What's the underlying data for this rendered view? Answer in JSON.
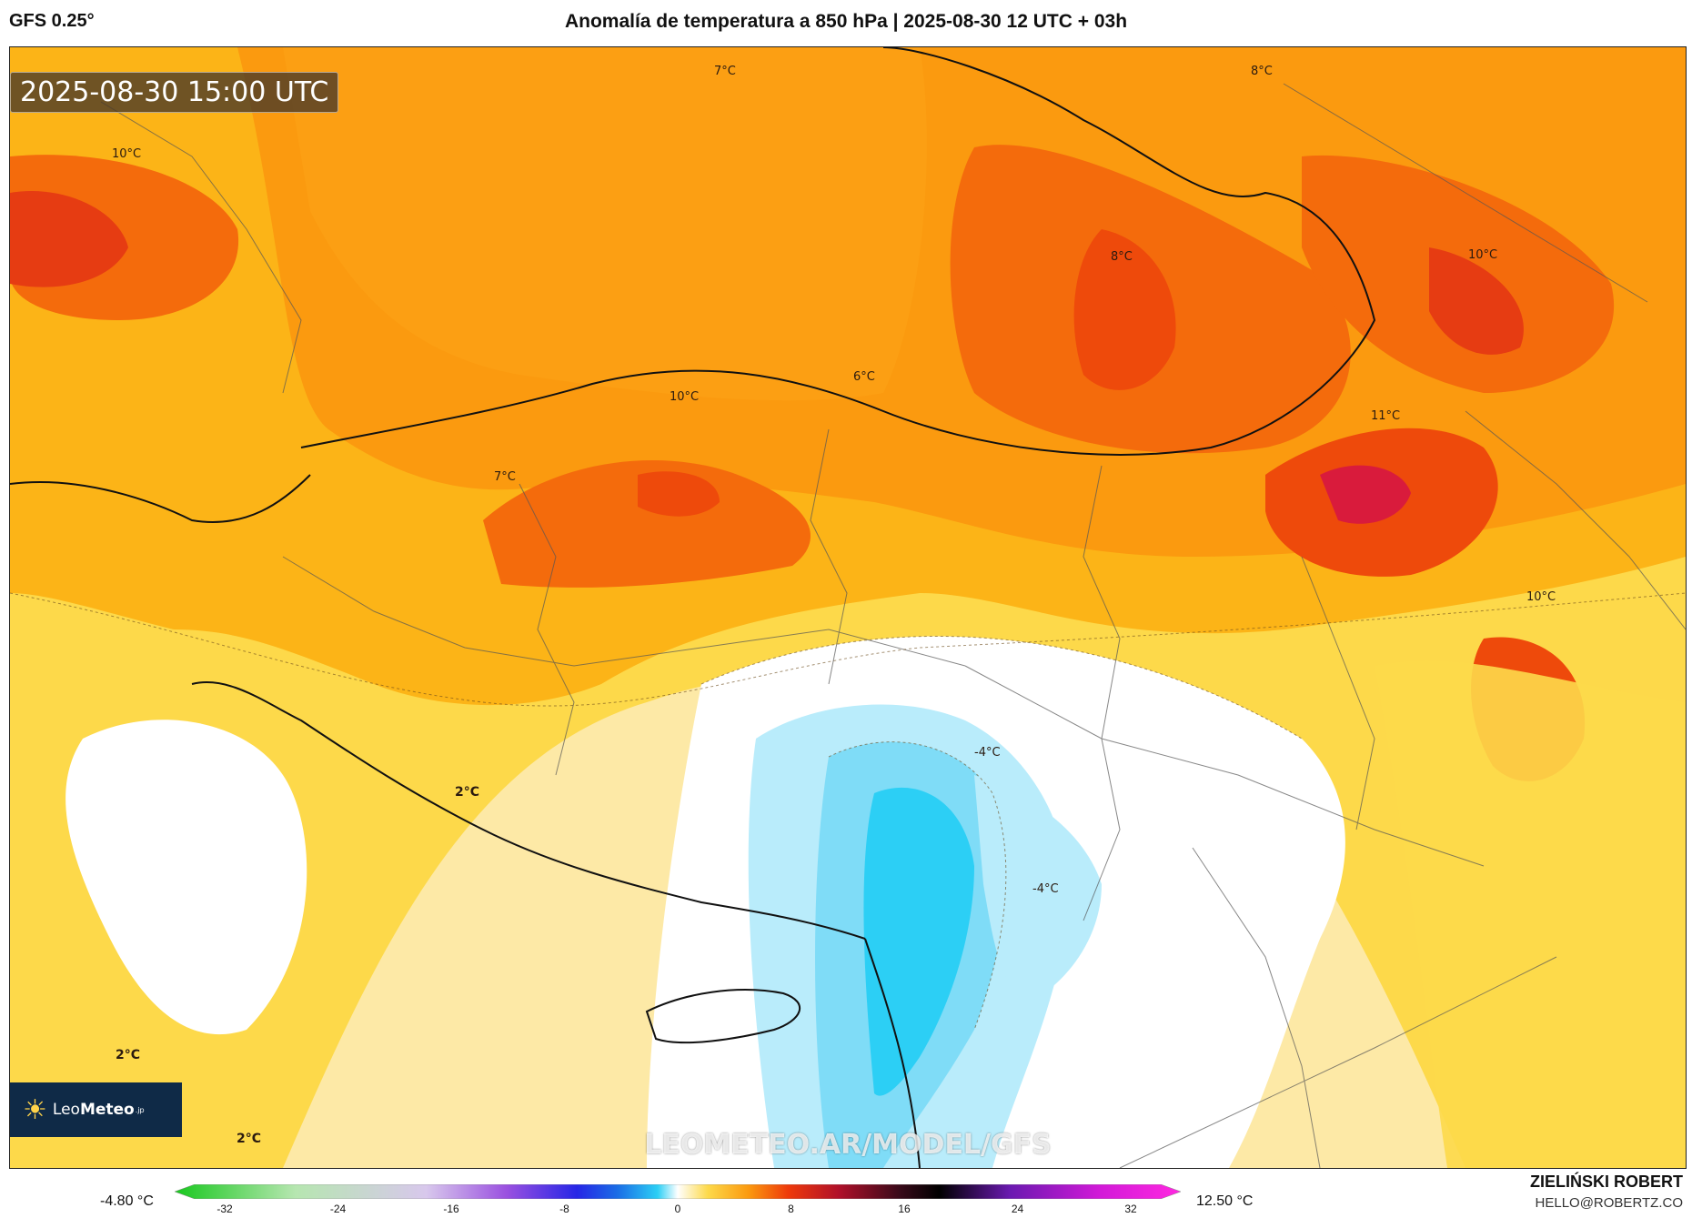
{
  "header": {
    "model": "GFS 0.25°",
    "title": "Anomalía de temperatura a 850 hPa | 2025-08-30 12 UTC + 03h"
  },
  "map": {
    "valid_time": "2025-08-30 15:00 UTC",
    "watermark": "LEOMETEO.AR/MODEL/GFS",
    "logo": {
      "name_light": "Leo",
      "name_bold": "Meteo",
      "suffix": ".jp"
    },
    "contour_labels": [
      {
        "text": "7°C"
      },
      {
        "text": "8°C"
      },
      {
        "text": "10°C"
      },
      {
        "text": "8°C"
      },
      {
        "text": "10°C"
      },
      {
        "text": "10°C"
      },
      {
        "text": "6°C"
      },
      {
        "text": "11°C"
      },
      {
        "text": "7°C"
      },
      {
        "text": "10°C"
      },
      {
        "text": "2°C"
      },
      {
        "text": "-4°C"
      },
      {
        "text": "-4°C"
      },
      {
        "text": "2°C"
      },
      {
        "text": "2°C"
      }
    ]
  },
  "legend": {
    "min_label": "-4.80 °C",
    "max_label": "12.50 °C",
    "ticks": [
      "-32",
      "-24",
      "-16",
      "-8",
      "0",
      "8",
      "16",
      "24",
      "32"
    ]
  },
  "credit": {
    "author": "ZIELIŃSKI ROBERT",
    "email": "HELLO@ROBERTZ.CO"
  }
}
